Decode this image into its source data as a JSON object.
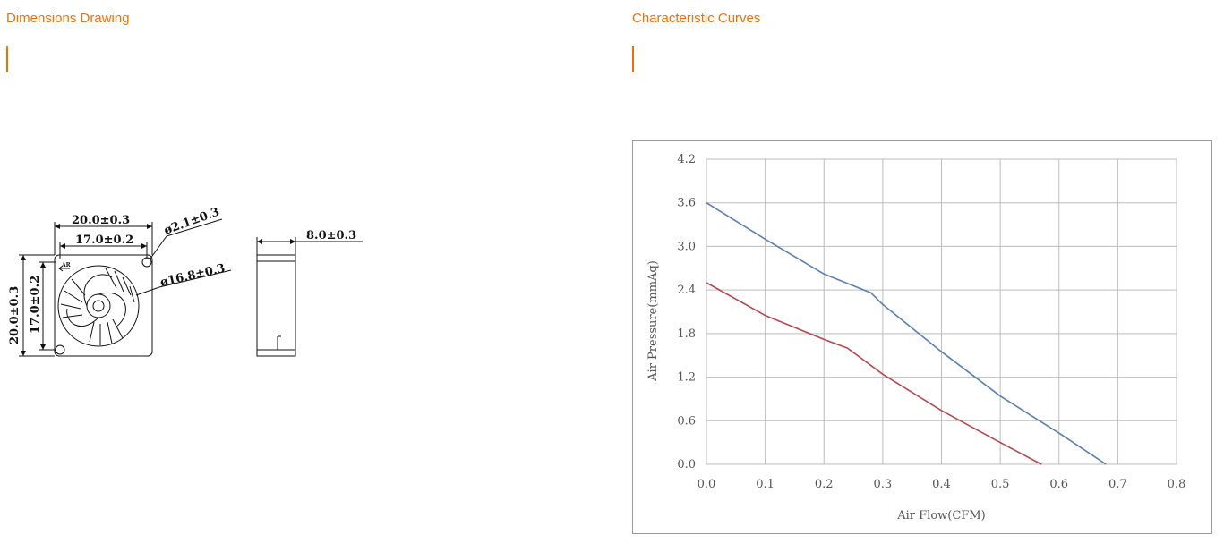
{
  "left_section": {
    "title": "Dimensions Drawing"
  },
  "right_section": {
    "title": "Characteristic Curves"
  },
  "drawing": {
    "dim_width_outer": "20.0±0.3",
    "dim_width_inner": "17.0±0.2",
    "dim_hole": "ø2.1±0.3",
    "dim_impeller": "ø16.8±0.3",
    "dim_height_outer": "20.0±0.3",
    "dim_height_inner": "17.0±0.2",
    "dim_thickness": "8.0±0.3",
    "marker_ar": "AR"
  },
  "chart_data": {
    "type": "line",
    "xlabel": "Air Flow(CFM)",
    "ylabel": "Air Pressure(mmAq)",
    "xlim": [
      0,
      0.8
    ],
    "ylim": [
      0,
      4.2
    ],
    "x_ticks": [
      "0.0",
      "0.1",
      "0.2",
      "0.3",
      "0.4",
      "0.5",
      "0.6",
      "0.7",
      "0.8"
    ],
    "y_ticks": [
      "0.0",
      "0.6",
      "1.2",
      "1.8",
      "2.4",
      "3.0",
      "3.6",
      "4.2"
    ],
    "x_tick_values": [
      0,
      0.1,
      0.2,
      0.3,
      0.4,
      0.5,
      0.6,
      0.7,
      0.8
    ],
    "y_tick_values": [
      0,
      0.6,
      1.2,
      1.8,
      2.4,
      3.0,
      3.6,
      4.2
    ],
    "grid": true,
    "series": [
      {
        "color": "#5b7fb0",
        "x": [
          0.0,
          0.1,
          0.2,
          0.28,
          0.3,
          0.4,
          0.5,
          0.6,
          0.68
        ],
        "y": [
          3.6,
          3.1,
          2.62,
          2.36,
          2.2,
          1.55,
          0.94,
          0.43,
          0.0
        ]
      },
      {
        "color": "#b5484f",
        "x": [
          0.0,
          0.1,
          0.2,
          0.24,
          0.3,
          0.4,
          0.5,
          0.57
        ],
        "y": [
          2.5,
          2.05,
          1.72,
          1.6,
          1.24,
          0.74,
          0.3,
          0.0
        ]
      }
    ]
  }
}
